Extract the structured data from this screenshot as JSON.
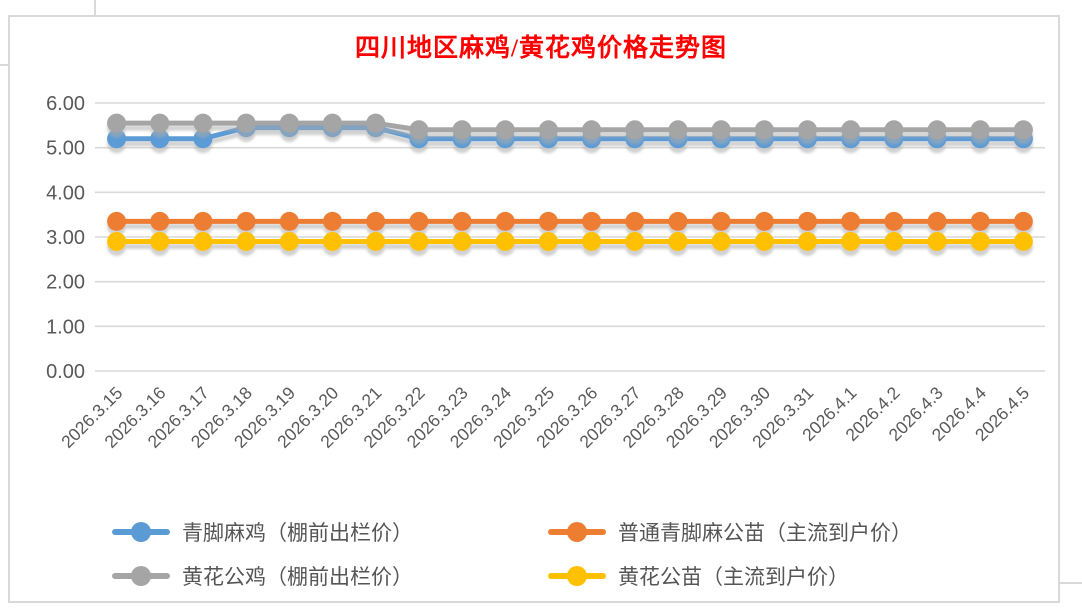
{
  "title": {
    "text": "四川地区麻鸡/黄花鸡价格走势图",
    "color": "#FF0000"
  },
  "chart_data": {
    "type": "line",
    "title": "四川地区麻鸡/黄花鸡价格走势图",
    "categories": [
      "2026.3.15",
      "2026.3.16",
      "2026.3.17",
      "2026.3.18",
      "2026.3.19",
      "2026.3.20",
      "2026.3.21",
      "2026.3.22",
      "2026.3.23",
      "2026.3.24",
      "2026.3.25",
      "2026.3.26",
      "2026.3.27",
      "2026.3.28",
      "2026.3.29",
      "2026.3.30",
      "2026.3.31",
      "2026.4.1",
      "2026.4.2",
      "2026.4.3",
      "2026.4.4",
      "2026.4.5"
    ],
    "series": [
      {
        "name": "青脚麻鸡（棚前出栏价）",
        "color": "#5B9BD5",
        "values": [
          5.2,
          5.2,
          5.2,
          5.45,
          5.45,
          5.45,
          5.45,
          5.2,
          5.2,
          5.2,
          5.2,
          5.2,
          5.2,
          5.2,
          5.2,
          5.2,
          5.2,
          5.2,
          5.2,
          5.2,
          5.2,
          5.2
        ]
      },
      {
        "name": "普通青脚麻公苗（主流到户价）",
        "color": "#ED7D31",
        "values": [
          3.35,
          3.35,
          3.35,
          3.35,
          3.35,
          3.35,
          3.35,
          3.35,
          3.35,
          3.35,
          3.35,
          3.35,
          3.35,
          3.35,
          3.35,
          3.35,
          3.35,
          3.35,
          3.35,
          3.35,
          3.35,
          3.35
        ]
      },
      {
        "name": "黄花公鸡（棚前出栏价）",
        "color": "#A5A5A5",
        "values": [
          5.55,
          5.55,
          5.55,
          5.55,
          5.55,
          5.55,
          5.55,
          5.4,
          5.4,
          5.4,
          5.4,
          5.4,
          5.4,
          5.4,
          5.4,
          5.4,
          5.4,
          5.4,
          5.4,
          5.4,
          5.4,
          5.4
        ]
      },
      {
        "name": "黄花公苗（主流到户价）",
        "color": "#FFC000",
        "values": [
          2.9,
          2.9,
          2.9,
          2.9,
          2.9,
          2.9,
          2.9,
          2.9,
          2.9,
          2.9,
          2.9,
          2.9,
          2.9,
          2.9,
          2.9,
          2.9,
          2.9,
          2.9,
          2.9,
          2.9,
          2.9,
          2.9
        ]
      }
    ],
    "ylim": [
      0,
      6
    ],
    "ytick_step": 1,
    "ytick_labels": [
      "0.00",
      "1.00",
      "2.00",
      "3.00",
      "4.00",
      "5.00",
      "6.00"
    ],
    "grid": true,
    "legend_position": "bottom",
    "axis_text_color": "#595959",
    "gridline_color": "#D9D9D9"
  }
}
